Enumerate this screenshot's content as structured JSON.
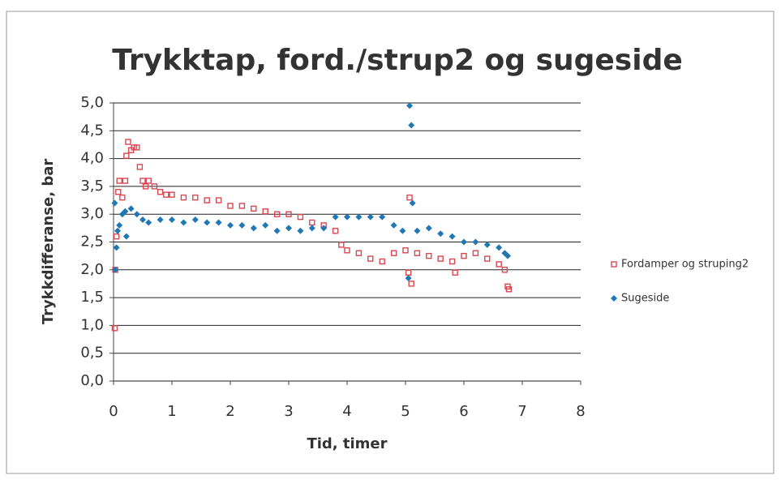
{
  "chart_data": {
    "type": "scatter",
    "title": "Trykktap, ford./strup2 og sugeside",
    "x_label": "Tid, timer",
    "y_label": "Trykkdifferanse, bar",
    "xlim": [
      0,
      8
    ],
    "xticks": [
      0,
      1,
      2,
      3,
      4,
      5,
      6,
      7,
      8
    ],
    "ylim": [
      0,
      5
    ],
    "yticks": [
      {
        "value": 0,
        "label": "0,0"
      },
      {
        "value": 0.5,
        "label": "0,5"
      },
      {
        "value": 1,
        "label": "1,0"
      },
      {
        "value": 1.5,
        "label": "1,5"
      },
      {
        "value": 2,
        "label": "2,0"
      },
      {
        "value": 2.5,
        "label": "2,5"
      },
      {
        "value": 3,
        "label": "3,0"
      },
      {
        "value": 3.5,
        "label": "3,5"
      },
      {
        "value": 4,
        "label": "4,0"
      },
      {
        "value": 4.5,
        "label": "4,5"
      },
      {
        "value": 5,
        "label": "5,0"
      }
    ],
    "grid": true,
    "legend": "right",
    "series": [
      {
        "name": "Fordamper og struping2",
        "color": "#d9474f",
        "marker": "square",
        "x": [
          0.02,
          0.03,
          0.05,
          0.08,
          0.1,
          0.15,
          0.2,
          0.22,
          0.25,
          0.3,
          0.35,
          0.4,
          0.45,
          0.5,
          0.55,
          0.6,
          0.7,
          0.8,
          0.9,
          1.0,
          1.2,
          1.4,
          1.6,
          1.8,
          2.0,
          2.2,
          2.4,
          2.6,
          2.8,
          3.0,
          3.2,
          3.4,
          3.6,
          3.8,
          3.9,
          4.0,
          4.2,
          4.4,
          4.6,
          4.8,
          5.0,
          5.05,
          5.07,
          5.1,
          5.2,
          5.4,
          5.6,
          5.8,
          5.85,
          6.0,
          6.2,
          6.4,
          6.6,
          6.7,
          6.75,
          6.77
        ],
        "values": [
          0.95,
          2.0,
          2.6,
          3.4,
          3.6,
          3.3,
          3.6,
          4.05,
          4.3,
          4.15,
          4.2,
          4.2,
          3.85,
          3.6,
          3.5,
          3.6,
          3.5,
          3.4,
          3.35,
          3.35,
          3.3,
          3.3,
          3.25,
          3.25,
          3.15,
          3.15,
          3.1,
          3.05,
          3.0,
          3.0,
          2.95,
          2.85,
          2.8,
          2.7,
          2.45,
          2.35,
          2.3,
          2.2,
          2.15,
          2.3,
          2.35,
          1.95,
          3.3,
          1.75,
          2.3,
          2.25,
          2.2,
          2.15,
          1.95,
          2.25,
          2.3,
          2.2,
          2.1,
          2.0,
          1.7,
          1.65
        ]
      },
      {
        "name": "Sugeside",
        "color": "#1f77b4",
        "marker": "diamond",
        "x": [
          0.02,
          0.03,
          0.05,
          0.07,
          0.1,
          0.15,
          0.2,
          0.22,
          0.3,
          0.4,
          0.5,
          0.6,
          0.8,
          1.0,
          1.2,
          1.4,
          1.6,
          1.8,
          2.0,
          2.2,
          2.4,
          2.6,
          2.8,
          3.0,
          3.2,
          3.4,
          3.6,
          3.8,
          4.0,
          4.2,
          4.4,
          4.6,
          4.8,
          4.95,
          5.05,
          5.07,
          5.1,
          5.12,
          5.2,
          5.4,
          5.6,
          5.8,
          6.0,
          6.2,
          6.4,
          6.6,
          6.7,
          6.75
        ],
        "values": [
          3.2,
          2.0,
          2.4,
          2.7,
          2.8,
          3.0,
          3.05,
          2.6,
          3.1,
          3.0,
          2.9,
          2.85,
          2.9,
          2.9,
          2.85,
          2.9,
          2.85,
          2.85,
          2.8,
          2.8,
          2.75,
          2.8,
          2.7,
          2.75,
          2.7,
          2.75,
          2.75,
          2.95,
          2.95,
          2.95,
          2.95,
          2.95,
          2.8,
          2.7,
          1.85,
          4.95,
          4.6,
          3.2,
          2.7,
          2.75,
          2.65,
          2.6,
          2.5,
          2.5,
          2.45,
          2.4,
          2.3,
          2.25
        ]
      }
    ]
  }
}
